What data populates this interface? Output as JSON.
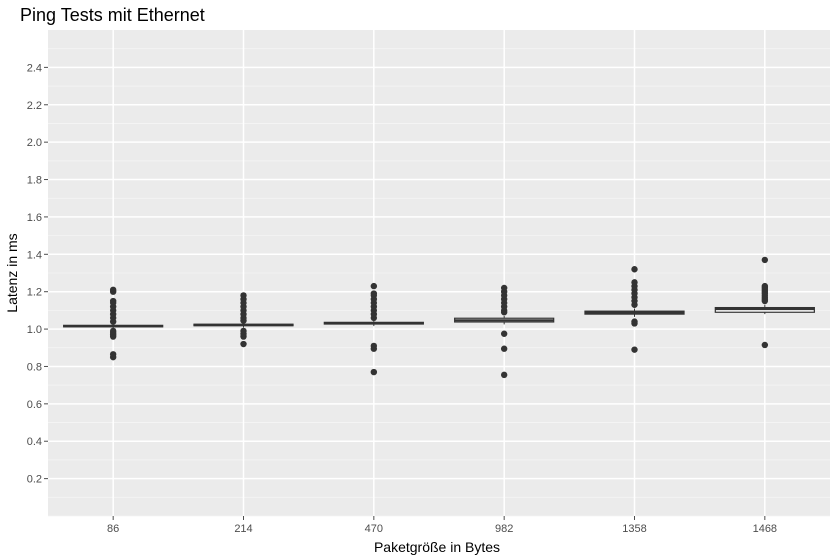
{
  "chart_data": {
    "type": "boxplot",
    "title": "Ping Tests mit Ethernet",
    "xlabel": "Paketgröße in Bytes",
    "ylabel": "Latenz in ms",
    "categories": [
      "86",
      "214",
      "470",
      "982",
      "1358",
      "1468"
    ],
    "ylim": [
      0.0,
      2.6
    ],
    "yticks": [
      0.2,
      0.4,
      0.6,
      0.8,
      1.0,
      1.2,
      1.4,
      1.6,
      1.8,
      2.0,
      2.2,
      2.4
    ],
    "ytick_labels": [
      "0.2",
      "0.4",
      "0.6",
      "0.8",
      "1.0",
      "1.2",
      "1.4",
      "1.6",
      "1.8",
      "2.0",
      "2.2",
      "2.4"
    ],
    "grid": true,
    "boxes": [
      {
        "category": "86",
        "q1": 1.012,
        "median": 1.016,
        "q3": 1.02,
        "whisker_low": 1.003,
        "whisker_high": 1.03,
        "outliers": [
          0.85,
          0.865,
          0.96,
          0.97,
          0.98,
          0.99,
          1.04,
          1.06,
          1.08,
          1.1,
          1.12,
          1.14,
          1.15,
          1.2,
          1.21
        ]
      },
      {
        "category": "214",
        "q1": 1.018,
        "median": 1.022,
        "q3": 1.026,
        "whisker_low": 1.008,
        "whisker_high": 1.036,
        "outliers": [
          0.92,
          0.96,
          0.975,
          0.99,
          1.045,
          1.06,
          1.08,
          1.1,
          1.12,
          1.14,
          1.16,
          1.18
        ]
      },
      {
        "category": "470",
        "q1": 1.027,
        "median": 1.032,
        "q3": 1.036,
        "whisker_low": 1.016,
        "whisker_high": 1.046,
        "outliers": [
          0.77,
          0.895,
          0.91,
          1.06,
          1.08,
          1.1,
          1.12,
          1.14,
          1.16,
          1.18,
          1.19,
          1.23
        ]
      },
      {
        "category": "982",
        "q1": 1.038,
        "median": 1.047,
        "q3": 1.058,
        "whisker_low": 1.025,
        "whisker_high": 1.07,
        "outliers": [
          0.755,
          0.895,
          0.975,
          1.09,
          1.1,
          1.12,
          1.14,
          1.16,
          1.18,
          1.2,
          1.22
        ]
      },
      {
        "category": "1358",
        "q1": 1.08,
        "median": 1.088,
        "q3": 1.096,
        "whisker_low": 1.065,
        "whisker_high": 1.11,
        "outliers": [
          0.89,
          1.03,
          1.04,
          1.13,
          1.15,
          1.17,
          1.19,
          1.21,
          1.23,
          1.25,
          1.32
        ]
      },
      {
        "category": "1468",
        "q1": 1.09,
        "median": 1.107,
        "q3": 1.115,
        "whisker_low": 1.08,
        "whisker_high": 1.13,
        "outliers": [
          0.915,
          1.15,
          1.16,
          1.17,
          1.18,
          1.19,
          1.2,
          1.21,
          1.22,
          1.23,
          1.37
        ]
      }
    ],
    "colors": {
      "panel": "#ebebeb",
      "grid_major": "#ffffff",
      "grid_minor": "#f5f5f5",
      "box_fill": "#ffffff",
      "box_line": "#333333",
      "point": "#333333",
      "tick": "#4d4d4d"
    }
  }
}
